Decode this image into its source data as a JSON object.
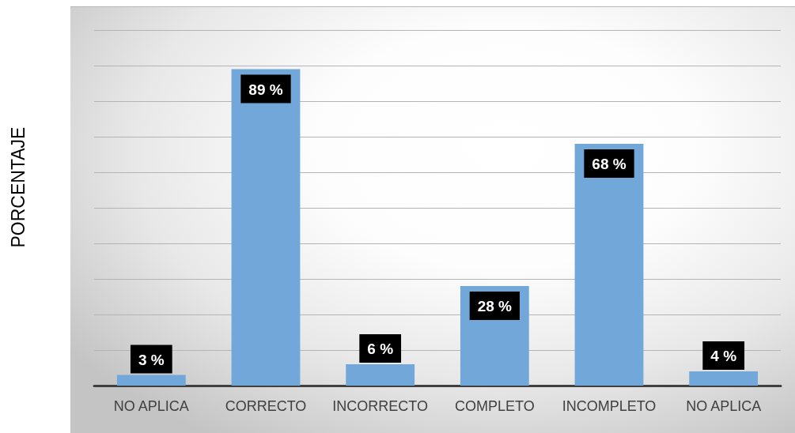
{
  "chart_data": {
    "type": "bar",
    "ylabel": "PORCENTAJE",
    "categories": [
      "NO APLICA",
      "CORRECTO",
      "INCORRECTO",
      "COMPLETO",
      "INCOMPLETO",
      "NO APLICA"
    ],
    "values": [
      3,
      89,
      6,
      28,
      68,
      4
    ],
    "color": "#72a7da",
    "value_labels": [
      "3 %",
      "89 %",
      "6 %",
      "28 %",
      "68 %",
      "4 %"
    ],
    "ylim": [
      0,
      100
    ],
    "yticks": [
      {
        "value": 0,
        "label": null
      },
      {
        "value": 10,
        "label": null
      },
      {
        "value": 20,
        "label": null
      },
      {
        "value": 30,
        "label": null
      },
      {
        "value": 40,
        "label": null
      },
      {
        "value": 50,
        "label": null
      },
      {
        "value": 60,
        "label": null
      },
      {
        "value": 70,
        "label": null
      },
      {
        "value": 80,
        "label": null
      },
      {
        "value": 90,
        "label": null
      },
      {
        "value": 100,
        "label": null
      }
    ],
    "tick_labels": "x",
    "grid": "y"
  }
}
